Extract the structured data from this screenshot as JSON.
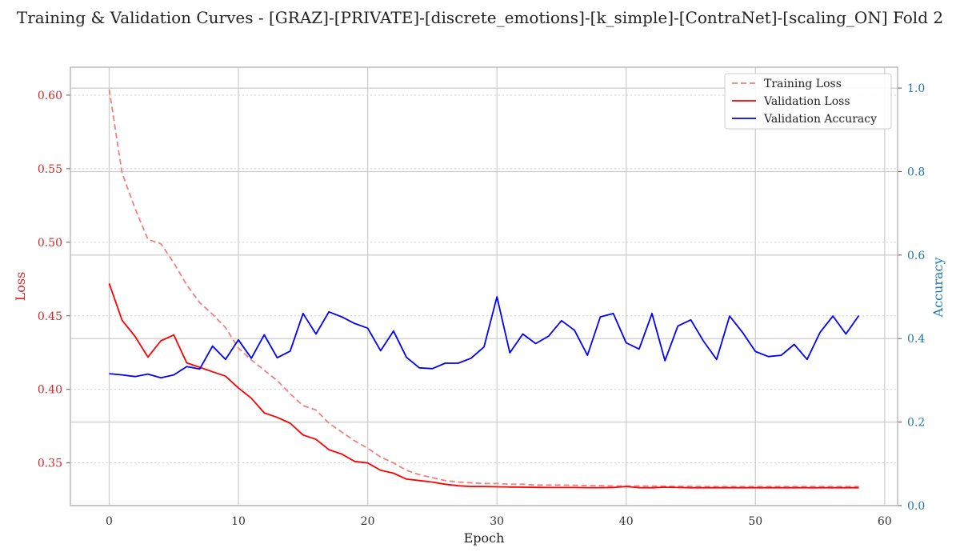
{
  "chart_data": {
    "type": "line",
    "title": "Training & Validation Curves - [GRAZ]-[PRIVATE]-[discrete_emotions]-[k_simple]-[ContraNet]-[scaling_ON] Fold 2",
    "xlabel": "Epoch",
    "ylabel_left": "Loss",
    "ylabel_right": "Accuracy",
    "xlim": [
      -3,
      61
    ],
    "ylim_left": [
      0.321,
      0.619
    ],
    "ylim_right": [
      0.0,
      1.05
    ],
    "x_ticks": [
      0,
      10,
      20,
      30,
      40,
      50,
      60
    ],
    "y_ticks_left": [
      0.35,
      0.4,
      0.45,
      0.5,
      0.55,
      0.6
    ],
    "y_ticks_right": [
      0.0,
      0.2,
      0.4,
      0.6,
      0.8,
      1.0
    ],
    "grid": true,
    "legend_position": "top-right",
    "colors": {
      "loss_axis": "#d62728",
      "accuracy_axis": "#1f77b4",
      "training_loss": "#f08080",
      "validation_loss": "#ff0000",
      "validation_accuracy": "#0000ff",
      "grid": "#cccccc",
      "frame": "#bbbbbb"
    },
    "series": [
      {
        "name": "Training Loss",
        "axis": "left",
        "style": "dashed",
        "x": [
          0,
          1,
          2,
          3,
          4,
          5,
          6,
          7,
          8,
          9,
          10,
          11,
          12,
          13,
          14,
          15,
          16,
          17,
          18,
          19,
          20,
          21,
          22,
          23,
          24,
          25,
          26,
          27,
          28,
          29,
          30,
          31,
          32,
          33,
          34,
          35,
          36,
          37,
          38,
          39,
          40,
          41,
          42,
          43,
          44,
          45,
          46,
          47,
          48,
          49,
          50,
          51,
          52,
          53,
          54,
          55,
          56,
          57,
          58
        ],
        "values": [
          0.604,
          0.547,
          0.523,
          0.502,
          0.499,
          0.486,
          0.471,
          0.459,
          0.451,
          0.442,
          0.428,
          0.42,
          0.413,
          0.406,
          0.397,
          0.389,
          0.386,
          0.377,
          0.371,
          0.365,
          0.36,
          0.354,
          0.35,
          0.345,
          0.342,
          0.34,
          0.338,
          0.337,
          0.3365,
          0.336,
          0.336,
          0.3355,
          0.3355,
          0.335,
          0.335,
          0.335,
          0.3348,
          0.3346,
          0.3345,
          0.3344,
          0.3343,
          0.3343,
          0.3342,
          0.3342,
          0.3341,
          0.3341,
          0.334,
          0.334,
          0.334,
          0.334,
          0.334,
          0.334,
          0.334,
          0.334,
          0.334,
          0.334,
          0.334,
          0.334,
          0.334
        ]
      },
      {
        "name": "Validation Loss",
        "axis": "left",
        "style": "solid",
        "x": [
          0,
          1,
          2,
          3,
          4,
          5,
          6,
          7,
          8,
          9,
          10,
          11,
          12,
          13,
          14,
          15,
          16,
          17,
          18,
          19,
          20,
          21,
          22,
          23,
          24,
          25,
          26,
          27,
          28,
          29,
          30,
          31,
          32,
          33,
          34,
          35,
          36,
          37,
          38,
          39,
          40,
          41,
          42,
          43,
          44,
          45,
          46,
          47,
          48,
          49,
          50,
          51,
          52,
          53,
          54,
          55,
          56,
          57,
          58
        ],
        "values": [
          0.472,
          0.447,
          0.436,
          0.422,
          0.433,
          0.437,
          0.418,
          0.415,
          0.412,
          0.409,
          0.401,
          0.394,
          0.384,
          0.381,
          0.377,
          0.369,
          0.366,
          0.359,
          0.356,
          0.351,
          0.35,
          0.345,
          0.343,
          0.339,
          0.338,
          0.337,
          0.3355,
          0.3345,
          0.334,
          0.334,
          0.3338,
          0.3336,
          0.3335,
          0.3334,
          0.3333,
          0.3333,
          0.3333,
          0.3332,
          0.3332,
          0.3333,
          0.334,
          0.3332,
          0.3331,
          0.3335,
          0.3333,
          0.3331,
          0.3331,
          0.3331,
          0.3331,
          0.3331,
          0.3331,
          0.3331,
          0.3331,
          0.3331,
          0.3331,
          0.3331,
          0.3331,
          0.3331,
          0.3331
        ]
      },
      {
        "name": "Validation Accuracy",
        "axis": "right",
        "style": "solid",
        "x": [
          0,
          1,
          2,
          3,
          4,
          5,
          6,
          7,
          8,
          9,
          10,
          11,
          12,
          13,
          14,
          15,
          16,
          17,
          18,
          19,
          20,
          21,
          22,
          23,
          24,
          25,
          26,
          27,
          28,
          29,
          30,
          31,
          32,
          33,
          34,
          35,
          36,
          37,
          38,
          39,
          40,
          41,
          42,
          43,
          44,
          45,
          46,
          47,
          48,
          49,
          50,
          51,
          52,
          53,
          54,
          55,
          56,
          57,
          58
        ],
        "values": [
          0.316,
          0.313,
          0.309,
          0.315,
          0.306,
          0.313,
          0.333,
          0.327,
          0.382,
          0.35,
          0.397,
          0.353,
          0.409,
          0.354,
          0.37,
          0.46,
          0.411,
          0.464,
          0.452,
          0.436,
          0.425,
          0.371,
          0.418,
          0.355,
          0.33,
          0.328,
          0.341,
          0.341,
          0.353,
          0.38,
          0.5,
          0.366,
          0.411,
          0.388,
          0.406,
          0.443,
          0.42,
          0.36,
          0.452,
          0.46,
          0.39,
          0.375,
          0.46,
          0.347,
          0.43,
          0.445,
          0.393,
          0.35,
          0.454,
          0.415,
          0.369,
          0.357,
          0.36,
          0.386,
          0.35,
          0.415,
          0.454,
          0.411,
          0.455
        ]
      }
    ]
  }
}
